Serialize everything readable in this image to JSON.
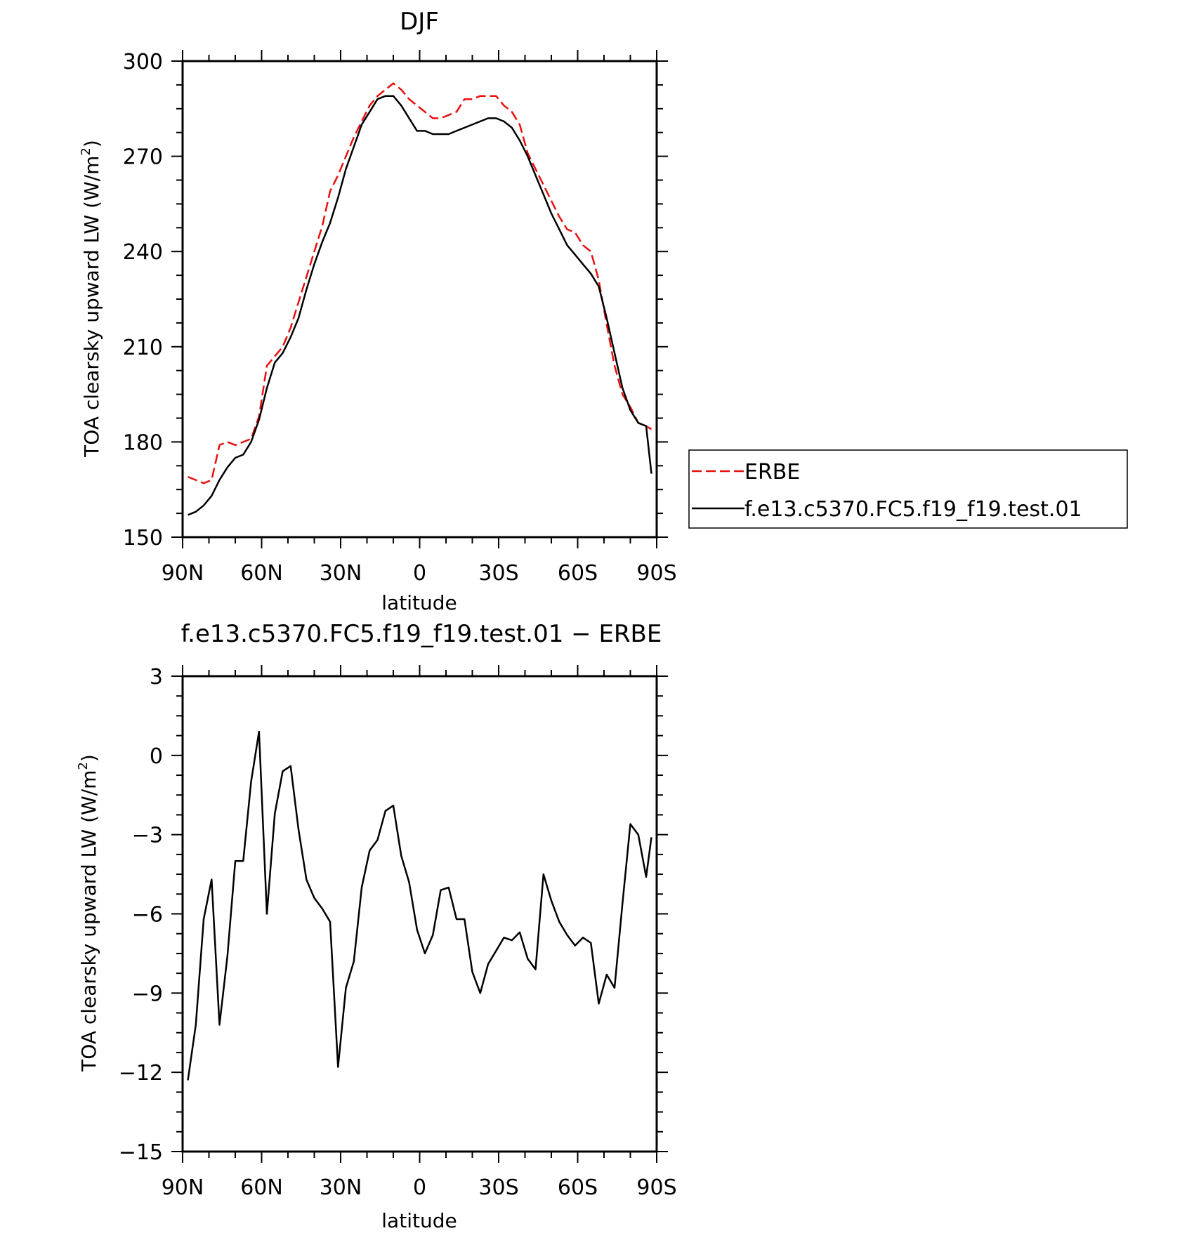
{
  "chart_data": [
    {
      "type": "line",
      "title": "DJF",
      "xlabel": "latitude",
      "ylabel": "TOA clearsky upward LW (W/m²)",
      "ylabel_main": "TOA clearsky upward LW (W/m",
      "ylabel_sup": "2",
      "ylabel_end": ")",
      "xlim": [
        90,
        -90
      ],
      "ylim": [
        150,
        300
      ],
      "x_ticks": [
        90,
        60,
        30,
        0,
        -30,
        -60,
        -90
      ],
      "x_tick_labels": [
        "90N",
        "60N",
        "30N",
        "0",
        "30S",
        "60S",
        "90S"
      ],
      "y_ticks": [
        150,
        180,
        210,
        240,
        270,
        300
      ],
      "y_tick_labels": [
        "150",
        "180",
        "210",
        "240",
        "270",
        "300"
      ],
      "legend": "right",
      "series": [
        {
          "name": "ERBE",
          "color": "#e8100f",
          "dash": "dashed",
          "x": [
            88,
            85,
            82,
            79,
            76,
            73,
            70,
            67,
            64,
            61,
            58,
            55,
            52,
            49,
            46,
            43,
            40,
            37,
            34,
            31,
            28,
            25,
            22,
            19,
            16,
            13,
            10,
            7,
            4,
            1,
            -2,
            -5,
            -8,
            -11,
            -14,
            -17,
            -20,
            -23,
            -26,
            -29,
            -32,
            -35,
            -38,
            -41,
            -44,
            -47,
            -50,
            -53,
            -56,
            -59,
            -62,
            -65,
            -68,
            -71,
            -74,
            -77,
            -80,
            -83,
            -86,
            -88
          ],
          "y": [
            169,
            168,
            167,
            168,
            179,
            180,
            179,
            180,
            181,
            188,
            204,
            207,
            210,
            216,
            224,
            232,
            240,
            248,
            259,
            264,
            270,
            276,
            281,
            286,
            289,
            291,
            293,
            291,
            288,
            286,
            284,
            282,
            282,
            283,
            284,
            288,
            288,
            289,
            289,
            289,
            286,
            284,
            280,
            271,
            266,
            261,
            256,
            251,
            247,
            246,
            242,
            240,
            231,
            217,
            204,
            195,
            191,
            186,
            185,
            184
          ]
        },
        {
          "name": "f.e13.c5370.FC5.f19_f19.test.01",
          "color": "#000000",
          "dash": "solid",
          "x": [
            88,
            85,
            82,
            79,
            76,
            73,
            70,
            67,
            64,
            61,
            58,
            55,
            52,
            49,
            46,
            43,
            40,
            37,
            34,
            31,
            28,
            25,
            22,
            19,
            16,
            13,
            10,
            7,
            4,
            1,
            -2,
            -5,
            -8,
            -11,
            -14,
            -17,
            -20,
            -23,
            -26,
            -29,
            -32,
            -35,
            -38,
            -41,
            -44,
            -47,
            -50,
            -53,
            -56,
            -59,
            -62,
            -65,
            -68,
            -71,
            -74,
            -77,
            -80,
            -83,
            -86,
            -88
          ],
          "y": [
            157,
            158,
            160,
            163,
            168,
            172,
            175,
            176,
            180,
            187,
            197,
            205,
            208,
            213,
            219,
            228,
            236,
            243,
            249,
            257,
            266,
            273,
            280,
            284,
            288,
            289,
            289,
            286,
            282,
            278,
            278,
            277,
            277,
            277,
            278,
            279,
            280,
            281,
            282,
            282,
            281,
            279,
            275,
            270,
            264,
            258,
            252,
            247,
            242,
            239,
            236,
            233,
            229,
            219,
            208,
            197,
            190,
            186,
            185,
            170
          ]
        }
      ]
    },
    {
      "type": "line",
      "title": "f.e13.c5370.FC5.f19_f19.test.01 − ERBE",
      "xlabel": "latitude",
      "ylabel": "TOA clearsky upward LW (W/m²)",
      "ylabel_main": "TOA clearsky upward LW (W/m",
      "ylabel_sup": "2",
      "ylabel_end": ")",
      "xlim": [
        90,
        -90
      ],
      "ylim": [
        -15,
        3
      ],
      "x_ticks": [
        90,
        60,
        30,
        0,
        -30,
        -60,
        -90
      ],
      "x_tick_labels": [
        "90N",
        "60N",
        "30N",
        "0",
        "30S",
        "60S",
        "90S"
      ],
      "y_ticks": [
        -15,
        -12,
        -9,
        -6,
        -3,
        0,
        3
      ],
      "y_tick_labels": [
        "−15",
        "−12",
        "−9",
        "−6",
        "−3",
        "0",
        "3"
      ],
      "series": [
        {
          "color": "#000000",
          "dash": "solid",
          "x": [
            88,
            85,
            82,
            79,
            76,
            73,
            70,
            67,
            64,
            61,
            58,
            55,
            52,
            49,
            46,
            43,
            40,
            37,
            34,
            31,
            28,
            25,
            22,
            19,
            16,
            13,
            10,
            7,
            4,
            1,
            -2,
            -5,
            -8,
            -11,
            -14,
            -17,
            -20,
            -23,
            -26,
            -29,
            -32,
            -35,
            -38,
            -41,
            -44,
            -47,
            -50,
            -53,
            -56,
            -59,
            -62,
            -65,
            -68,
            -71,
            -74,
            -77,
            -80,
            -83,
            -86,
            -88
          ],
          "y": [
            -12.3,
            -10.2,
            -6.2,
            -4.7,
            -10.2,
            -7.6,
            -4.0,
            -4.0,
            -1.0,
            0.9,
            -6.0,
            -2.2,
            -0.6,
            -0.4,
            -2.8,
            -4.7,
            -5.4,
            -5.8,
            -6.3,
            -11.8,
            -8.8,
            -7.8,
            -5.0,
            -3.6,
            -3.2,
            -2.1,
            -1.9,
            -3.8,
            -4.8,
            -6.6,
            -7.5,
            -6.8,
            -5.1,
            -5.0,
            -6.2,
            -6.2,
            -8.2,
            -9.0,
            -7.9,
            -7.4,
            -6.9,
            -7.0,
            -6.7,
            -7.7,
            -8.1,
            -4.5,
            -5.5,
            -6.3,
            -6.8,
            -7.2,
            -6.9,
            -7.1,
            -9.4,
            -8.3,
            -8.8,
            -5.6,
            -2.6,
            -3.0,
            -4.6,
            -3.1
          ]
        }
      ]
    }
  ]
}
